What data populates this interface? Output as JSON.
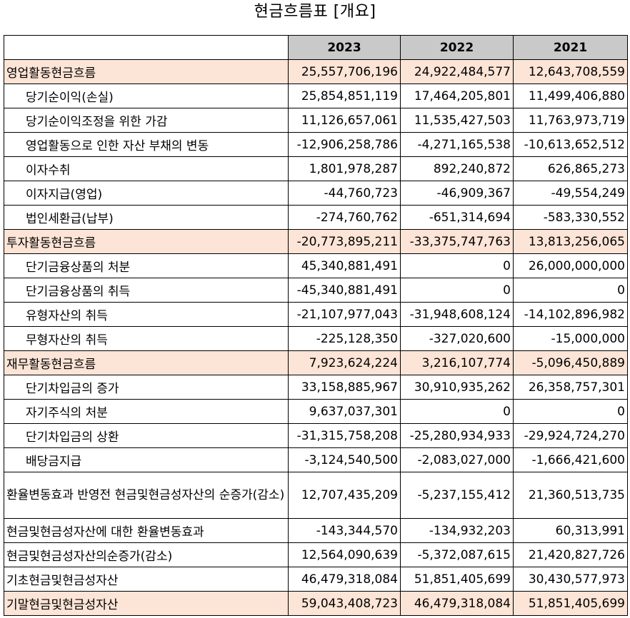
{
  "title": "현금흐름표 [개요]",
  "columns": [
    "2023",
    "2022",
    "2021"
  ],
  "colors": {
    "header_bg": "#c9c9c9",
    "section_bg": "#fce4d6",
    "border": "#000000"
  },
  "rows": [
    {
      "label": "영업활동현금흐름",
      "type": "section",
      "values": [
        "25,557,706,196",
        "24,922,484,577",
        "12,643,708,559"
      ]
    },
    {
      "label": "당기순이익(손실)",
      "type": "sub",
      "values": [
        "25,854,851,119",
        "17,464,205,801",
        "11,499,406,880"
      ]
    },
    {
      "label": "당기순이익조정을 위한 가감",
      "type": "sub",
      "values": [
        "11,126,657,061",
        "11,535,427,503",
        "11,763,973,719"
      ]
    },
    {
      "label": "영업활동으로 인한 자산 부채의 변동",
      "type": "sub",
      "values": [
        "-12,906,258,786",
        "-4,271,165,538",
        "-10,613,652,512"
      ]
    },
    {
      "label": "이자수취",
      "type": "sub",
      "values": [
        "1,801,978,287",
        "892,240,872",
        "626,865,273"
      ]
    },
    {
      "label": "이자지급(영업)",
      "type": "sub",
      "values": [
        "-44,760,723",
        "-46,909,367",
        "-49,554,249"
      ]
    },
    {
      "label": "법인세환급(납부)",
      "type": "sub",
      "values": [
        "-274,760,762",
        "-651,314,694",
        "-583,330,552"
      ]
    },
    {
      "label": "투자활동현금흐름",
      "type": "section",
      "values": [
        "-20,773,895,211",
        "-33,375,747,763",
        "13,813,256,065"
      ]
    },
    {
      "label": "단기금융상품의 처분",
      "type": "sub",
      "values": [
        "45,340,881,491",
        "0",
        "26,000,000,000"
      ]
    },
    {
      "label": "단기금융상품의 취득",
      "type": "sub",
      "values": [
        "-45,340,881,491",
        "0",
        "0"
      ]
    },
    {
      "label": "유형자산의 취득",
      "type": "sub",
      "values": [
        "-21,107,977,043",
        "-31,948,608,124",
        "-14,102,896,982"
      ]
    },
    {
      "label": "무형자산의 취득",
      "type": "sub",
      "values": [
        "-225,128,350",
        "-327,020,600",
        "-15,000,000"
      ]
    },
    {
      "label": "재무활동현금흐름",
      "type": "section",
      "values": [
        "7,923,624,224",
        "3,216,107,774",
        "-5,096,450,889"
      ]
    },
    {
      "label": "단기차입금의 증가",
      "type": "sub",
      "values": [
        "33,158,885,967",
        "30,910,935,262",
        "26,358,757,301"
      ]
    },
    {
      "label": "자기주식의 처분",
      "type": "sub",
      "values": [
        "9,637,037,301",
        "0",
        "0"
      ]
    },
    {
      "label": "단기차입금의 상환",
      "type": "sub",
      "values": [
        "-31,315,758,208",
        "-25,280,934,933",
        "-29,924,724,270"
      ]
    },
    {
      "label": "배당금지급",
      "type": "sub",
      "values": [
        "-3,124,540,500",
        "-2,083,027,000",
        "-1,666,421,600"
      ]
    },
    {
      "label": "환율변동효과 반영전 현금및현금성자산의 순증가(감소)",
      "type": "tall",
      "values": [
        "12,707,435,209",
        "-5,237,155,412",
        "21,360,513,735"
      ]
    },
    {
      "label": "현금및현금성자산에 대한 환율변동효과",
      "type": "plain",
      "values": [
        "-143,344,570",
        "-134,932,203",
        "60,313,991"
      ]
    },
    {
      "label": "현금및현금성자산의순증가(감소)",
      "type": "plain",
      "values": [
        "12,564,090,639",
        "-5,372,087,615",
        "21,420,827,726"
      ]
    },
    {
      "label": "기초현금및현금성자산",
      "type": "plain",
      "values": [
        "46,479,318,084",
        "51,851,405,699",
        "30,430,577,973"
      ]
    },
    {
      "label": "기말현금및현금성자산",
      "type": "section",
      "values": [
        "59,043,408,723",
        "46,479,318,084",
        "51,851,405,699"
      ]
    }
  ]
}
